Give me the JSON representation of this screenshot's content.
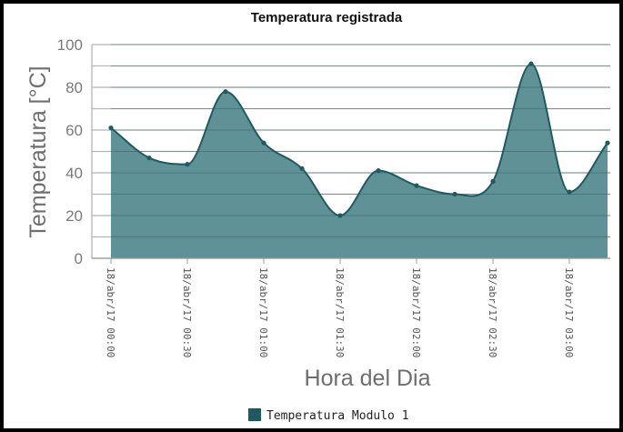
{
  "chart_data": {
    "type": "area",
    "title": "Temperatura registrada",
    "xlabel": "Hora del Dia",
    "ylabel": "Temperatura [°C]",
    "ylim": [
      0,
      100
    ],
    "yticks": [
      0,
      20,
      40,
      60,
      80,
      100
    ],
    "grid": true,
    "legend_position": "bottom",
    "x_tick_labels": [
      "18/abr/17 00:00",
      "18/abr/17 00:30",
      "18/abr/17 01:00",
      "18/abr/17 01:30",
      "18/abr/17 02:00",
      "18/abr/17 02:30",
      "18/abr/17 03:00"
    ],
    "series": [
      {
        "name": "Temperatura Modulo 1",
        "color": "#5f9296",
        "line_color": "#1f5a60",
        "points": [
          {
            "x": "18/abr/17 00:00",
            "y": 61
          },
          {
            "x": "18/abr/17 00:15",
            "y": 47
          },
          {
            "x": "18/abr/17 00:30",
            "y": 44
          },
          {
            "x": "18/abr/17 00:45",
            "y": 78
          },
          {
            "x": "18/abr/17 01:00",
            "y": 54
          },
          {
            "x": "18/abr/17 01:15",
            "y": 42
          },
          {
            "x": "18/abr/17 01:30",
            "y": 20
          },
          {
            "x": "18/abr/17 01:45",
            "y": 41
          },
          {
            "x": "18/abr/17 02:00",
            "y": 34
          },
          {
            "x": "18/abr/17 02:15",
            "y": 30
          },
          {
            "x": "18/abr/17 02:30",
            "y": 36
          },
          {
            "x": "18/abr/17 02:45",
            "y": 91
          },
          {
            "x": "18/abr/17 03:00",
            "y": 31
          },
          {
            "x": "18/abr/17 03:15",
            "y": 54
          }
        ]
      }
    ]
  }
}
